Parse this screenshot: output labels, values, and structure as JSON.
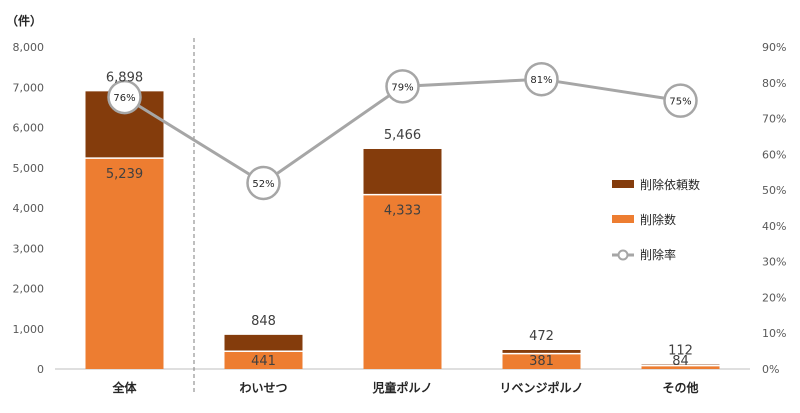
{
  "chart_data": {
    "type": "bar",
    "stacked": true,
    "title": "",
    "unit_label": "（件）",
    "categories": [
      "全体",
      "わいせつ",
      "児童ポルノ",
      "リベンジポルノ",
      "その他"
    ],
    "series": [
      {
        "name": "削除依頼数",
        "values": [
          6898,
          848,
          5466,
          472,
          112
        ],
        "value_labels": [
          "6,898",
          "848",
          "5,466",
          "472",
          "112"
        ],
        "color": "#843c0c"
      },
      {
        "name": "削除数",
        "values": [
          5239,
          441,
          4333,
          381,
          84
        ],
        "value_labels": [
          "5,239",
          "441",
          "4,333",
          "381",
          "84"
        ],
        "color": "#ed7d31"
      },
      {
        "name": "削除率",
        "type": "line",
        "axis": "right",
        "values": [
          76,
          52,
          79,
          81,
          75
        ],
        "value_labels": [
          "76%",
          "52%",
          "79%",
          "81%",
          "75%"
        ],
        "color": "#a6a6a6"
      }
    ],
    "left_axis": {
      "ylim": [
        0,
        8000
      ],
      "ticks": [
        0,
        1000,
        2000,
        3000,
        4000,
        5000,
        6000,
        7000,
        8000
      ],
      "tick_labels": [
        "0",
        "1,000",
        "2,000",
        "3,000",
        "4,000",
        "5,000",
        "6,000",
        "7,000",
        "8,000"
      ]
    },
    "right_axis": {
      "ylim": [
        0,
        90
      ],
      "ticks": [
        0,
        10,
        20,
        30,
        40,
        50,
        60,
        70,
        80,
        90
      ],
      "tick_labels": [
        "0%",
        "10%",
        "20%",
        "30%",
        "40%",
        "50%",
        "60%",
        "70%",
        "80%",
        "90%"
      ]
    },
    "grid": false,
    "divider_after_category": 0,
    "legend_position": "right"
  }
}
